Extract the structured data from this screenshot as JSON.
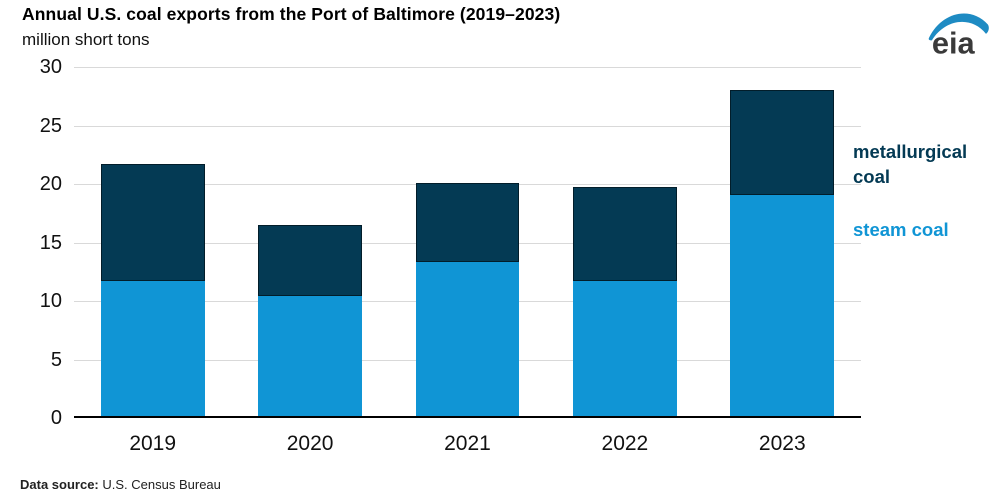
{
  "header": {
    "title": "Annual U.S. coal exports from the Port of Baltimore (2019–2023)",
    "subtitle": "million short tons"
  },
  "logo": {
    "text": "eia",
    "arc_color": "#1e8bc3",
    "text_color": "#3a3a3a"
  },
  "legend": {
    "metallurgical_label": "metallurgical coal",
    "steam_label": "steam coal"
  },
  "footer": {
    "label": "Data source:",
    "value": "U.S. Census Bureau"
  },
  "colors": {
    "steam_coal": "#1095d5",
    "metallurgical_coal": "#043a54",
    "gridline": "#d9d9d9",
    "axis": "#000000"
  },
  "chart_data": {
    "type": "bar",
    "stacked": true,
    "title": "Annual U.S. coal exports from the Port of Baltimore (2019–2023)",
    "ylabel": "million short tons",
    "xlabel": "",
    "categories": [
      "2019",
      "2020",
      "2021",
      "2022",
      "2023"
    ],
    "series": [
      {
        "name": "steam coal",
        "color": "#1095d5",
        "values": [
          11.5,
          10.3,
          13.2,
          11.5,
          18.9
        ]
      },
      {
        "name": "metallurgical coal",
        "color": "#043a54",
        "values": [
          10.0,
          6.0,
          6.7,
          8.1,
          9.0
        ]
      }
    ],
    "totals": [
      21.5,
      16.3,
      19.9,
      19.6,
      27.9
    ],
    "ylim": [
      0,
      30
    ],
    "yticks": [
      0,
      5,
      10,
      15,
      20,
      25,
      30
    ],
    "grid": true,
    "legend_position": "right"
  }
}
